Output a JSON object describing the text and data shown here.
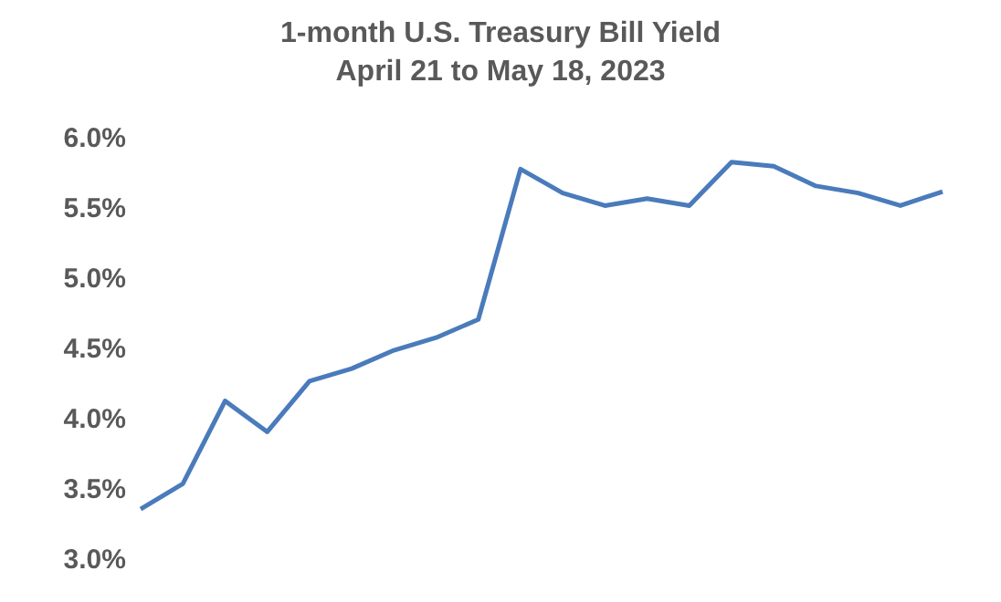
{
  "chart_data": {
    "type": "line",
    "title": "1-month U.S. Treasury Bill Yield",
    "subtitle": "April 21 to May 18, 2023",
    "categories": [
      null,
      null,
      null,
      null,
      null,
      null,
      null,
      null,
      null,
      null,
      null,
      null,
      null,
      null,
      null,
      null,
      null,
      null,
      null,
      null
    ],
    "series": [
      {
        "color": "#4a7bbb",
        "values": [
          3.35,
          3.53,
          4.12,
          3.9,
          4.26,
          4.35,
          4.48,
          4.57,
          4.7,
          5.77,
          5.6,
          5.51,
          5.56,
          5.51,
          5.82,
          5.79,
          5.65,
          5.6,
          5.51,
          5.61
        ]
      }
    ],
    "ylim": [
      3.0,
      6.0
    ],
    "yticks": [
      {
        "value": 3.0,
        "label": "3.0%"
      },
      {
        "value": 3.5,
        "label": "3.5%"
      },
      {
        "value": 4.0,
        "label": "4.0%"
      },
      {
        "value": 4.5,
        "label": "4.5%"
      },
      {
        "value": 5.0,
        "label": "5.0%"
      },
      {
        "value": 5.5,
        "label": "5.5%"
      },
      {
        "value": 6.0,
        "label": "6.0%"
      }
    ],
    "tick_labels": "y",
    "marker": "none",
    "line_style": "solid",
    "legend": false
  }
}
